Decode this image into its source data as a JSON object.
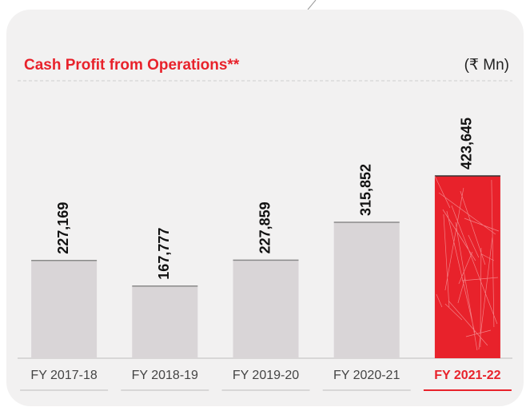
{
  "chart_data": {
    "type": "bar",
    "title": "Cash Profit from Operations**",
    "subtitle": "(₹ Mn)",
    "categories": [
      "FY 2017-18",
      "FY 2018-19",
      "FY 2019-20",
      "FY 2020-21",
      "FY 2021-22"
    ],
    "values": [
      227169,
      167777,
      227859,
      315852,
      423645
    ],
    "value_labels": [
      "227,169",
      "167,777",
      "227,859",
      "315,852",
      "423,645"
    ],
    "colors": [
      "#d9d5d7",
      "#d9d5d7",
      "#d9d5d7",
      "#d9d5d7",
      "#e8222b"
    ],
    "highlight_color": "#e8222b",
    "title_color": "#e8222b"
  }
}
